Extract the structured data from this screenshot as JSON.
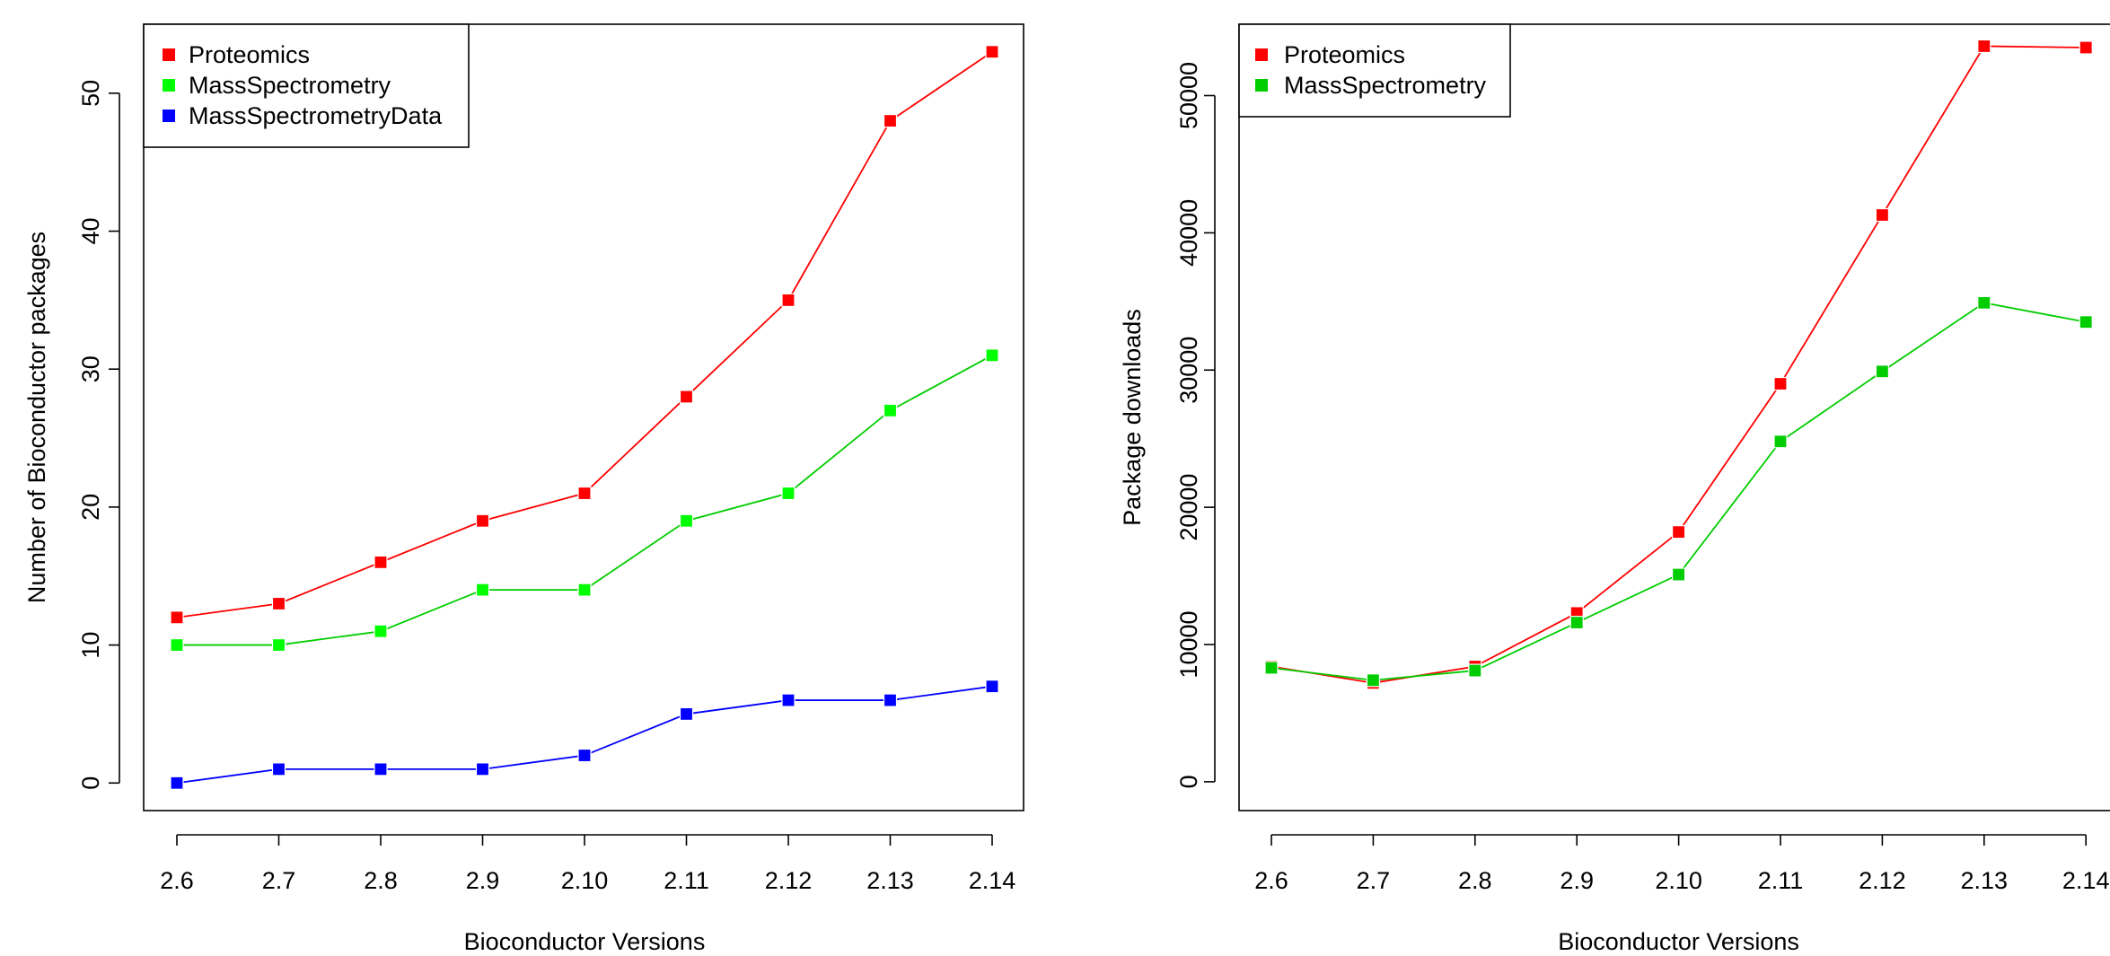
{
  "chart_data": [
    {
      "type": "line",
      "categories": [
        "2.6",
        "2.7",
        "2.8",
        "2.9",
        "2.10",
        "2.11",
        "2.12",
        "2.13",
        "2.14"
      ],
      "xlabel": "Bioconductor Versions",
      "ylabel": "Number of Bioconductor packages",
      "ylim": [
        -2,
        55
      ],
      "yticks": [
        "0",
        "10",
        "20",
        "30",
        "40",
        "50"
      ],
      "grid": false,
      "legend_position": "top-left",
      "series": [
        {
          "name": "Proteomics",
          "color": "#ff0000",
          "values": [
            12,
            13,
            16,
            19,
            21,
            28,
            35,
            48,
            53
          ]
        },
        {
          "name": "MassSpectrometry",
          "color": "#00cd00",
          "marker_color": "#00ff00",
          "values": [
            10,
            10,
            11,
            14,
            14,
            19,
            21,
            27,
            31
          ]
        },
        {
          "name": "MassSpectrometryData",
          "color": "#0000ff",
          "values": [
            0,
            1,
            1,
            1,
            2,
            5,
            6,
            6,
            7
          ]
        }
      ]
    },
    {
      "type": "line",
      "categories": [
        "2.6",
        "2.7",
        "2.8",
        "2.9",
        "2.10",
        "2.11",
        "2.12",
        "2.13",
        "2.14"
      ],
      "xlabel": "Bioconductor Versions",
      "ylabel": "Package downloads",
      "ylim": [
        -2100,
        55200
      ],
      "yticks": [
        "0",
        "10000",
        "20000",
        "30000",
        "40000",
        "50000"
      ],
      "grid": false,
      "legend_position": "top-left",
      "series": [
        {
          "name": "Proteomics",
          "color": "#ff0000",
          "values": [
            8400,
            7200,
            8400,
            12300,
            18200,
            29000,
            41300,
            53600,
            53500
          ]
        },
        {
          "name": "MassSpectrometry",
          "color": "#00cd00",
          "marker_color": "#00cd00",
          "values": [
            8300,
            7400,
            8100,
            11600,
            15100,
            24800,
            29900,
            34900,
            33500
          ]
        }
      ]
    }
  ]
}
